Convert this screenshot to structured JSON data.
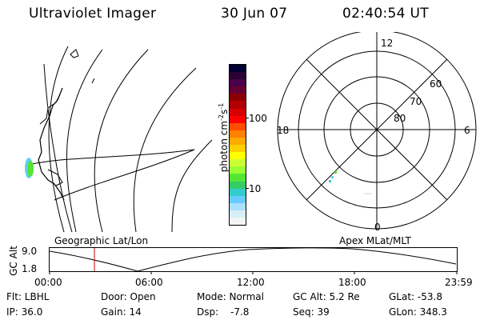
{
  "header": {
    "title": "Ultraviolet Imager",
    "date": "30 Jun 07",
    "time": "02:40:54 UT"
  },
  "colorbar": {
    "label": "photon cm-2s-1",
    "label_main": "photon cm",
    "label_exp1": "-2",
    "label_mid": "s",
    "label_exp2": "-1",
    "ticks": [
      "100",
      "10"
    ],
    "colors": [
      "#000033",
      "#2b0033",
      "#4a004a",
      "#660033",
      "#8a0000",
      "#b30000",
      "#d60000",
      "#ff0000",
      "#ff4d00",
      "#ff8000",
      "#ffaa00",
      "#ffd000",
      "#ffff00",
      "#ccff33",
      "#99ff33",
      "#55e633",
      "#33cc66",
      "#33cccc",
      "#66ccff",
      "#aadfff",
      "#d8eef6",
      "#f4f4f4"
    ]
  },
  "polar_plot": {
    "mlt_labels": {
      "top": "12",
      "left": "18",
      "right": "6",
      "bottom": "0"
    },
    "lat_labels": [
      "60",
      "70",
      "80"
    ]
  },
  "timeline": {
    "left_title": "Geographic Lat/Lon",
    "right_title": "Apex MLat/MLT",
    "axis_title": "GC Alt",
    "y_ticks": [
      "9.0",
      "1.8"
    ],
    "x_ticks": [
      "00:00",
      "06:00",
      "12:00",
      "18:00",
      "23:59"
    ]
  },
  "status": {
    "filter": "Flt: LBHL",
    "door": "Door: Open",
    "mode": "Mode: Normal",
    "gc_alt": "GC Alt: 5.2 Re",
    "glat": "GLat: -53.8",
    "ip": "IP: 36.0",
    "gain": "Gain: 14",
    "dsp_label": "Dsp:",
    "dsp_value": "-7.8",
    "seq": "Seq: 39",
    "glon": "GLon: 348.3"
  }
}
